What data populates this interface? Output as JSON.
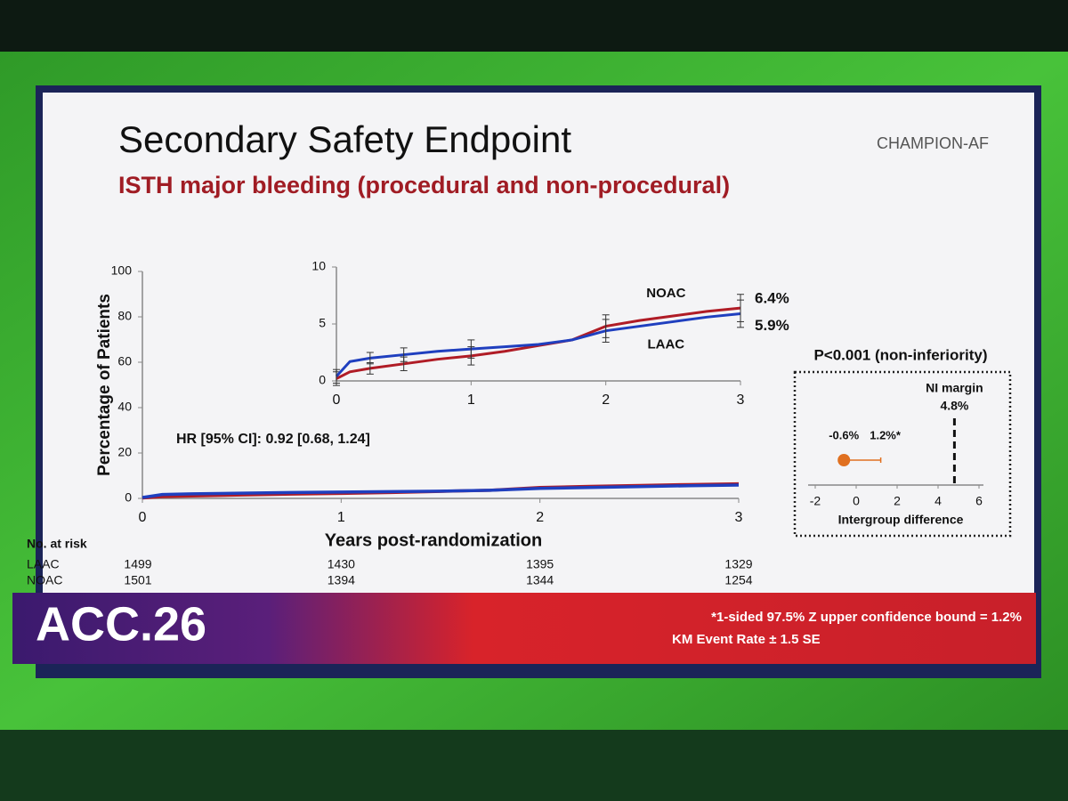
{
  "slide": {
    "title": "Secondary Safety Endpoint",
    "subtitle": "ISTH major bleeding (procedural and non-procedural)",
    "logo": "CHAMPION-AF",
    "conference": "ACC.26",
    "footnotes": [
      "*1-sided 97.5% Z upper confidence bound = 1.2%",
      "KM Event Rate ± 1.5 SE"
    ]
  },
  "risk_table": {
    "title": "No. at risk",
    "rows": [
      {
        "name": "LAAC",
        "values": [
          1499,
          1430,
          1395,
          1329
        ]
      },
      {
        "name": "NOAC",
        "values": [
          1501,
          1394,
          1344,
          1254
        ]
      }
    ]
  },
  "chart_data": [
    {
      "type": "line",
      "ylabel": "Percentage of Patients",
      "xlabel": "Years post-randomization",
      "annotation": "HR [95% CI]: 0.92 [0.68, 1.24]",
      "x": [
        0,
        0.1,
        0.25,
        0.5,
        0.75,
        1,
        1.25,
        1.5,
        1.75,
        2,
        2.25,
        2.5,
        2.75,
        3
      ],
      "series": [
        {
          "color": "#b01c26",
          "values": [
            0.2,
            0.8,
            1.1,
            1.5,
            1.9,
            2.2,
            2.6,
            3.1,
            3.6,
            4.8,
            5.3,
            5.7,
            6.1,
            6.4
          ]
        },
        {
          "color": "#1f3fbf",
          "values": [
            0.4,
            1.7,
            2.0,
            2.3,
            2.6,
            2.8,
            3.0,
            3.2,
            3.6,
            4.4,
            4.8,
            5.2,
            5.6,
            5.9
          ]
        }
      ],
      "xlim": [
        0,
        3
      ],
      "ylim": [
        0,
        100
      ],
      "xticks": [
        0,
        1,
        2,
        3
      ],
      "yticks": [
        0,
        20,
        40,
        60,
        80,
        100
      ]
    },
    {
      "type": "line",
      "x": [
        0,
        0.1,
        0.25,
        0.5,
        0.75,
        1,
        1.25,
        1.5,
        1.75,
        2,
        2.25,
        2.5,
        2.75,
        3
      ],
      "series": [
        {
          "name": "NOAC",
          "color": "#b01c26",
          "values": [
            0.2,
            0.8,
            1.1,
            1.5,
            1.9,
            2.2,
            2.6,
            3.1,
            3.6,
            4.8,
            5.3,
            5.7,
            6.1,
            6.4
          ],
          "errors": [
            0.6,
            null,
            0.5,
            0.6,
            null,
            0.8,
            null,
            null,
            null,
            1.0,
            null,
            null,
            null,
            1.2
          ],
          "value_labels": [
            null,
            null,
            null,
            null,
            null,
            null,
            null,
            null,
            null,
            null,
            null,
            null,
            null,
            "6.4%"
          ]
        },
        {
          "name": "LAAC",
          "color": "#1f3fbf",
          "values": [
            0.4,
            1.7,
            2.0,
            2.3,
            2.6,
            2.8,
            3.0,
            3.2,
            3.6,
            4.4,
            4.8,
            5.2,
            5.6,
            5.9
          ],
          "errors": [
            0.6,
            null,
            0.5,
            0.6,
            null,
            0.8,
            null,
            null,
            null,
            1.0,
            null,
            null,
            null,
            1.2
          ],
          "value_labels": [
            null,
            null,
            null,
            null,
            null,
            null,
            null,
            null,
            null,
            null,
            null,
            null,
            null,
            "5.9%"
          ]
        }
      ],
      "xlim": [
        0,
        3
      ],
      "ylim": [
        0,
        10
      ],
      "xticks": [
        0,
        1,
        2,
        3
      ],
      "yticks": [
        0,
        5,
        10
      ]
    },
    {
      "type": "forest",
      "title": "P<0.001 (non-inferiority)",
      "xlabel": "Intergroup difference",
      "estimate": -0.6,
      "estimate_label": "-0.6%",
      "upper": 1.2,
      "upper_label": "1.2%*",
      "margin": 4.8,
      "margin_title": "NI margin",
      "margin_label": "4.8%",
      "color": "#e07020",
      "xlim": [
        -2,
        6
      ],
      "xticks": [
        -2,
        0,
        2,
        4,
        6
      ]
    }
  ]
}
